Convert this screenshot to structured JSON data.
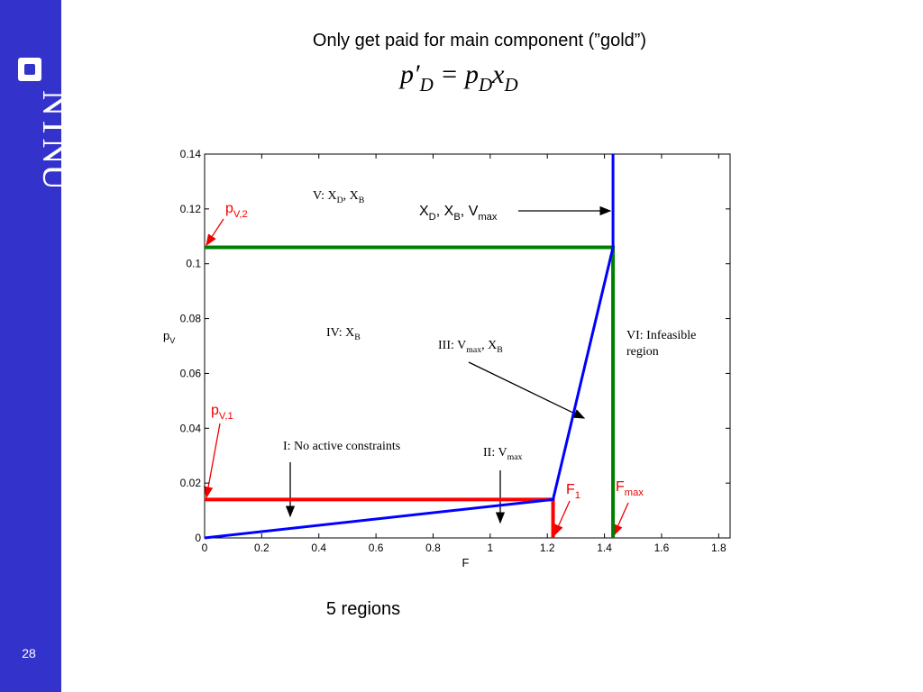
{
  "slide": {
    "logo": "NTNU",
    "page_number": "28",
    "title": "Only get paid for main component (”gold”)",
    "formula": [
      "p′",
      "D",
      " = p",
      "D",
      "x",
      "D"
    ],
    "caption": "5 regions"
  },
  "chart_data": {
    "type": "line",
    "xlabel": "F",
    "ylabel": [
      "p",
      "V"
    ],
    "xlim": [
      0,
      1.84
    ],
    "ylim": [
      0,
      0.14
    ],
    "xticks": [
      0,
      0.2,
      0.4,
      0.6,
      0.8,
      1,
      1.2,
      1.4,
      1.6,
      1.8
    ],
    "yticks": [
      0,
      0.02,
      0.04,
      0.06,
      0.08,
      0.1,
      0.12,
      0.14
    ],
    "series": [
      {
        "color": "#0000ff",
        "x": [
          0,
          1.22,
          1.43,
          1.43
        ],
        "values": [
          0,
          0.014,
          0.106,
          0.14
        ]
      },
      {
        "color": "#ff0000",
        "x": [
          0,
          1.22,
          1.22
        ],
        "values": [
          0.014,
          0.014,
          0
        ]
      },
      {
        "color": "#008000",
        "x": [
          0,
          1.43,
          1.43
        ],
        "values": [
          0.106,
          0.106,
          0
        ]
      }
    ],
    "annotations": [
      {
        "parts": [
          "V: X",
          "D",
          ", X",
          "B"
        ]
      },
      {
        "parts": [
          "X",
          "D",
          ", X",
          "B",
          ", V",
          "max"
        ]
      },
      {
        "parts": [
          "IV: X",
          "B"
        ]
      },
      {
        "parts": [
          "III: V",
          "max",
          ", X",
          "B"
        ]
      },
      {
        "parts": [
          "VI: Infeasible"
        ]
      },
      {
        "parts": [
          "region"
        ]
      },
      {
        "parts": [
          "I: No active constraints"
        ]
      },
      {
        "parts": [
          "II: V",
          "max"
        ]
      },
      {
        "parts": [
          "p",
          "V,2"
        ]
      },
      {
        "parts": [
          "p",
          "V,1"
        ]
      },
      {
        "parts": [
          "F",
          "1"
        ]
      },
      {
        "parts": [
          "F",
          "max"
        ]
      }
    ]
  }
}
